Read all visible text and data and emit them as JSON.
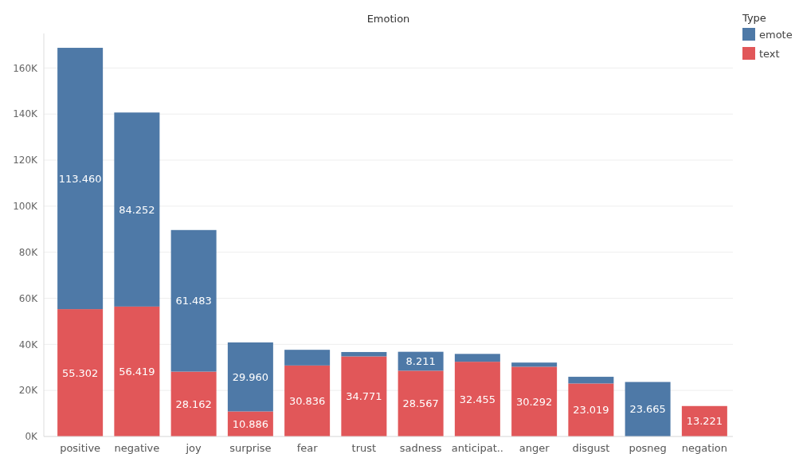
{
  "chart_data": {
    "type": "bar",
    "title": "Emotion",
    "legend_title": "Type",
    "stacked": true,
    "legend": "top right",
    "grid": "y",
    "categories": [
      "positive",
      "negative",
      "joy",
      "surprise",
      "fear",
      "trust",
      "sadness",
      "anticipat..",
      "anger",
      "disgust",
      "posneg",
      "negation"
    ],
    "series": [
      {
        "name": "text",
        "color": "#e15759",
        "values": [
          55302,
          56419,
          28162,
          10886,
          30836,
          34771,
          28567,
          32455,
          30292,
          23019,
          null,
          13221
        ],
        "value_labels": [
          "55.302",
          "56.419",
          "28.162",
          "10.886",
          "30.836",
          "34.771",
          "28.567",
          "32.455",
          "30.292",
          "23.019",
          null,
          "13.221"
        ]
      },
      {
        "name": "emote",
        "color": "#4e79a7",
        "values": [
          113460,
          84252,
          61483,
          29960,
          6800,
          1900,
          8211,
          3400,
          1800,
          2900,
          23665,
          null
        ],
        "value_labels": [
          "113.460",
          "84.252",
          "61.483",
          "29.960",
          null,
          null,
          "8.211",
          null,
          null,
          null,
          "23.665",
          null
        ]
      }
    ],
    "ylim": [
      0,
      175000
    ],
    "yticks": [
      {
        "value": 0,
        "label": "0K"
      },
      {
        "value": 20000,
        "label": "20K"
      },
      {
        "value": 40000,
        "label": "40K"
      },
      {
        "value": 60000,
        "label": "60K"
      },
      {
        "value": 80000,
        "label": "80K"
      },
      {
        "value": 100000,
        "label": "100K"
      },
      {
        "value": 120000,
        "label": "120K"
      },
      {
        "value": 140000,
        "label": "140K"
      },
      {
        "value": 160000,
        "label": "160K"
      }
    ]
  }
}
